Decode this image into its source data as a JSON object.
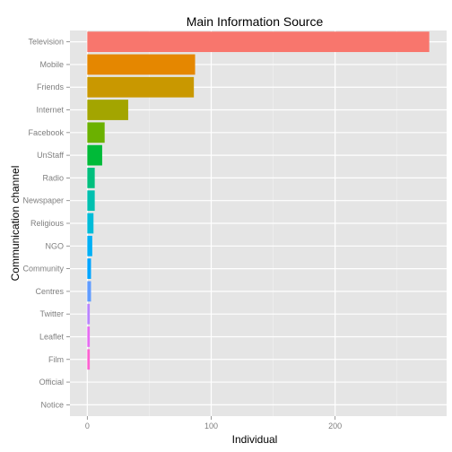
{
  "chart_data": {
    "type": "bar",
    "orientation": "horizontal",
    "title": "Main Information Source",
    "xlabel": "Individual",
    "ylabel": "Communication channel",
    "xlim": [
      -14,
      290
    ],
    "xticks": [
      0,
      100,
      200
    ],
    "grid": true,
    "legend": "none",
    "categories": [
      "Television",
      "Mobile",
      "Friends",
      "Internet",
      "Facebook",
      "UnStaff",
      "Radio",
      "Newspaper",
      "Religious",
      "NGO",
      "Community",
      "Centres",
      "Twitter",
      "Leaflet",
      "Film",
      "Official",
      "Notice"
    ],
    "values": [
      276,
      87,
      86,
      33,
      14,
      12,
      6,
      6,
      5,
      4,
      3,
      3,
      2,
      2,
      2,
      0,
      0
    ],
    "colors": [
      "#F8766D",
      "#E58700",
      "#C99800",
      "#A3A500",
      "#6BB100",
      "#00BA38",
      "#00BF7D",
      "#00C0AF",
      "#00BCD8",
      "#00B0F6",
      "#00A5FF",
      "#619CFF",
      "#B983FF",
      "#E76BF3",
      "#FD61D1",
      "#FF67A4",
      "#FF6C91"
    ]
  }
}
